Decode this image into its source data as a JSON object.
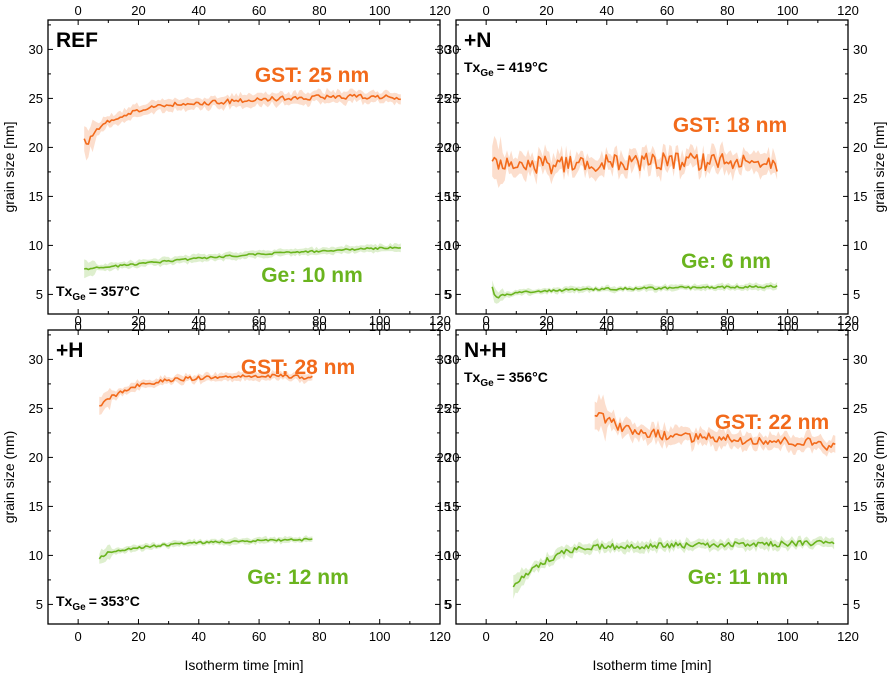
{
  "colors": {
    "gst": "#f26a1b",
    "ge": "#6ab41e",
    "axis": "#000000"
  },
  "labels": {
    "x_axis": "Isotherm time [min]",
    "y_axis_top": "grain size [nm]",
    "y_axis_bottom": "grain size (nm)"
  },
  "chart_data": [
    {
      "type": "line",
      "panel": "REF",
      "tx_prefix": "Tx",
      "tx_sub": "Ge",
      "tx_value": "= 357°C",
      "tx_position": "bottom-left",
      "xlim": [
        -10,
        120
      ],
      "ylim": [
        3,
        33
      ],
      "x_ticks": [
        0,
        20,
        40,
        60,
        80,
        100,
        120
      ],
      "y_ticks": [
        5,
        10,
        15,
        20,
        25,
        30
      ],
      "grid": false,
      "series": [
        {
          "name": "GST: 25 nm",
          "color": "#f26a1b",
          "x_start": 2,
          "x_end": 107,
          "noise": 0.25,
          "band": 0.6,
          "points": [
            [
              2,
              20.8
            ],
            [
              3,
              20.2
            ],
            [
              5,
              21.5
            ],
            [
              8,
              22.3
            ],
            [
              12,
              22.9
            ],
            [
              16,
              23.4
            ],
            [
              20,
              23.8
            ],
            [
              25,
              24.1
            ],
            [
              30,
              24.3
            ],
            [
              40,
              24.5
            ],
            [
              50,
              24.7
            ],
            [
              60,
              24.9
            ],
            [
              70,
              25.0
            ],
            [
              80,
              25.1
            ],
            [
              90,
              25.2
            ],
            [
              100,
              25.2
            ],
            [
              107,
              25.0
            ]
          ]
        },
        {
          "name": "Ge: 10 nm",
          "color": "#6ab41e",
          "x_start": 2,
          "x_end": 107,
          "noise": 0.1,
          "band": 0.35,
          "points": [
            [
              2,
              7.6
            ],
            [
              10,
              7.8
            ],
            [
              20,
              8.1
            ],
            [
              30,
              8.4
            ],
            [
              40,
              8.7
            ],
            [
              50,
              8.9
            ],
            [
              60,
              9.1
            ],
            [
              70,
              9.3
            ],
            [
              80,
              9.4
            ],
            [
              90,
              9.6
            ],
            [
              100,
              9.7
            ],
            [
              107,
              9.8
            ]
          ]
        }
      ]
    },
    {
      "type": "line",
      "panel": "+N",
      "tx_prefix": "Tx",
      "tx_sub": "Ge",
      "tx_value": "= 419°C",
      "tx_position": "top-left",
      "xlim": [
        -10,
        120
      ],
      "ylim": [
        3,
        33
      ],
      "x_ticks": [
        0,
        20,
        40,
        60,
        80,
        100,
        120
      ],
      "y_ticks": [
        5,
        10,
        15,
        20,
        25,
        30
      ],
      "grid": false,
      "series": [
        {
          "name": "GST: 18 nm",
          "color": "#f26a1b",
          "x_start": 2,
          "x_end": 97,
          "noise": 0.9,
          "band": 1.0,
          "points": [
            [
              2,
              18.5
            ],
            [
              20,
              18.2
            ],
            [
              40,
              18.4
            ],
            [
              60,
              18.6
            ],
            [
              80,
              18.5
            ],
            [
              97,
              18.3
            ]
          ]
        },
        {
          "name": "Ge: 6 nm",
          "color": "#6ab41e",
          "x_start": 2,
          "x_end": 97,
          "noise": 0.12,
          "band": 0.3,
          "points": [
            [
              2,
              5.8
            ],
            [
              3,
              4.6
            ],
            [
              6,
              5.0
            ],
            [
              15,
              5.3
            ],
            [
              30,
              5.5
            ],
            [
              50,
              5.6
            ],
            [
              70,
              5.7
            ],
            [
              97,
              5.8
            ]
          ]
        }
      ]
    },
    {
      "type": "line",
      "panel": "+H",
      "tx_prefix": "Tx",
      "tx_sub": "Ge",
      "tx_value": "= 353°C",
      "tx_position": "bottom-left",
      "xlim": [
        -10,
        120
      ],
      "ylim": [
        3,
        33
      ],
      "x_ticks": [
        0,
        20,
        40,
        60,
        80,
        100,
        120
      ],
      "y_ticks": [
        5,
        10,
        15,
        20,
        25,
        30
      ],
      "grid": false,
      "series": [
        {
          "name": "GST: 28 nm",
          "color": "#f26a1b",
          "x_start": 7,
          "x_end": 78,
          "noise": 0.2,
          "band": 0.4,
          "points": [
            [
              7,
              25.3
            ],
            [
              10,
              26.0
            ],
            [
              15,
              26.8
            ],
            [
              20,
              27.4
            ],
            [
              30,
              27.9
            ],
            [
              40,
              28.1
            ],
            [
              50,
              28.2
            ],
            [
              60,
              28.3
            ],
            [
              70,
              28.3
            ],
            [
              78,
              28.1
            ]
          ]
        },
        {
          "name": "Ge: 12 nm",
          "color": "#6ab41e",
          "x_start": 7,
          "x_end": 78,
          "noise": 0.12,
          "band": 0.3,
          "points": [
            [
              7,
              9.7
            ],
            [
              10,
              10.3
            ],
            [
              20,
              10.8
            ],
            [
              30,
              11.1
            ],
            [
              40,
              11.3
            ],
            [
              50,
              11.4
            ],
            [
              60,
              11.5
            ],
            [
              70,
              11.6
            ],
            [
              78,
              11.6
            ]
          ]
        }
      ]
    },
    {
      "type": "line",
      "panel": "N+H",
      "tx_prefix": "Tx",
      "tx_sub": "Ge",
      "tx_value": "= 356°C",
      "tx_position": "top-left",
      "xlim": [
        -10,
        120
      ],
      "ylim": [
        3,
        33
      ],
      "x_ticks": [
        0,
        20,
        40,
        60,
        80,
        100,
        120
      ],
      "y_ticks": [
        5,
        10,
        15,
        20,
        25,
        30
      ],
      "grid": false,
      "series": [
        {
          "name": "GST: 22 nm",
          "color": "#f26a1b",
          "x_start": 36,
          "x_end": 116,
          "noise": 0.5,
          "band": 0.8,
          "points": [
            [
              36,
              24.5
            ],
            [
              40,
              23.8
            ],
            [
              45,
              23.0
            ],
            [
              50,
              22.6
            ],
            [
              60,
              22.2
            ],
            [
              70,
              22.0
            ],
            [
              80,
              21.9
            ],
            [
              90,
              21.8
            ],
            [
              100,
              21.6
            ],
            [
              110,
              21.5
            ],
            [
              116,
              21.0
            ]
          ]
        },
        {
          "name": "Ge: 11 nm",
          "color": "#6ab41e",
          "x_start": 9,
          "x_end": 116,
          "noise": 0.3,
          "band": 0.5,
          "points": [
            [
              9,
              7.0
            ],
            [
              12,
              7.8
            ],
            [
              15,
              8.6
            ],
            [
              20,
              9.5
            ],
            [
              25,
              10.2
            ],
            [
              30,
              10.7
            ],
            [
              40,
              10.9
            ],
            [
              60,
              11.0
            ],
            [
              80,
              11.1
            ],
            [
              100,
              11.2
            ],
            [
              116,
              11.3
            ]
          ]
        }
      ]
    }
  ]
}
